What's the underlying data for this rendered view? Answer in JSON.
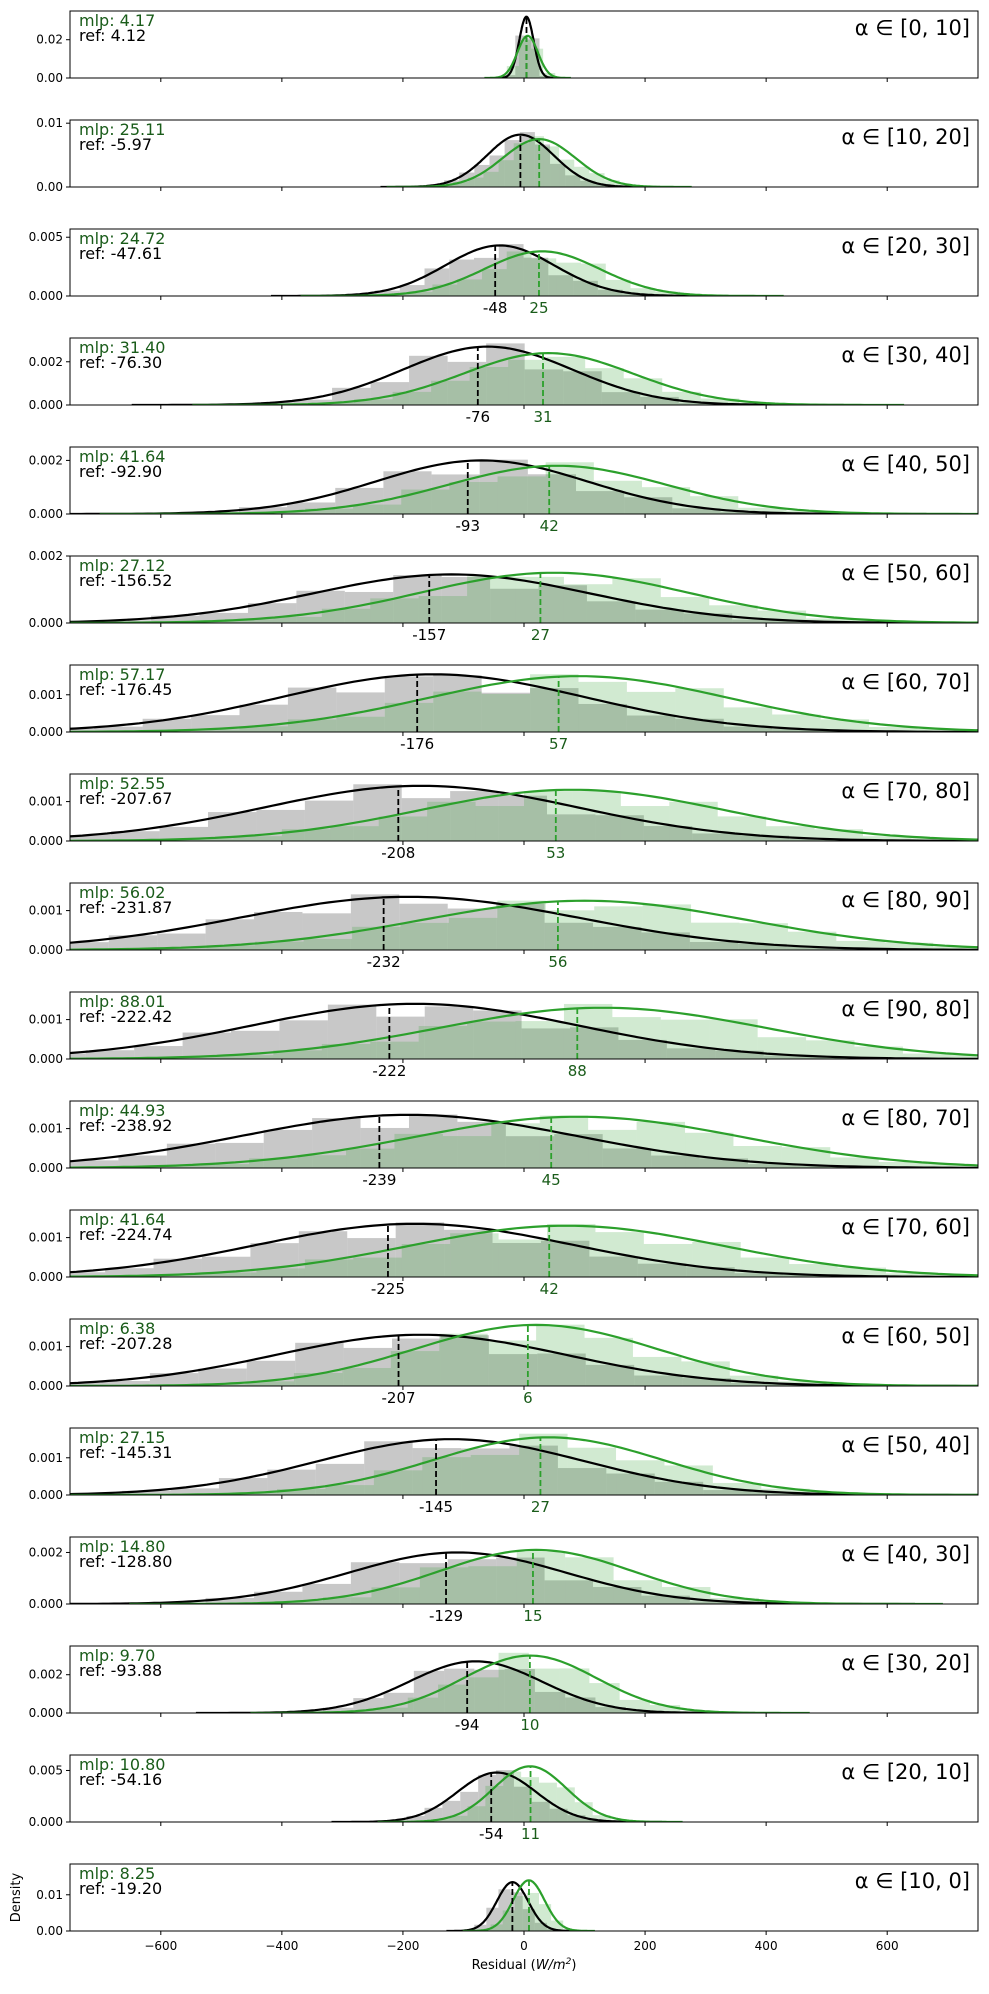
{
  "chart_data": {
    "type": "area",
    "xlabel": "Residual ($W/m^2$)",
    "ylabel": "Density",
    "xlim": [
      -750,
      750
    ],
    "xticks": [
      -600,
      -400,
      -200,
      0,
      200,
      400,
      600
    ],
    "grid": false,
    "series_colors": {
      "mlp": "#2ca02c",
      "ref": "#000000",
      "mlp_label": "#1a5c1a"
    },
    "panels": [
      {
        "label": "α ∈ [0, 10]",
        "mlp_text": "mlp: 4.17",
        "ref_text": "ref: 4.12",
        "mlp_mean": 4.17,
        "ref_mean": 4.12,
        "ymax": 0.035,
        "yticks": [
          0.0,
          0.02
        ],
        "ytick_labels": [
          "0.00",
          "0.02"
        ],
        "show_means": false,
        "ref_kde": {
          "mu": 4,
          "sigma": 12,
          "peak": 0.032
        },
        "mlp_kde": {
          "mu": 6,
          "sigma": 17,
          "peak": 0.022
        }
      },
      {
        "label": "α ∈ [10, 20]",
        "mlp_text": "mlp: 25.11",
        "ref_text": "ref: -5.97",
        "mlp_mean": 25.11,
        "ref_mean": -5.97,
        "ymax": 0.0105,
        "yticks": [
          0.0,
          0.01
        ],
        "ytick_labels": [
          "0.00",
          "0.01"
        ],
        "show_means": false,
        "ref_kde": {
          "mu": -6,
          "sigma": 55,
          "peak": 0.0082
        },
        "mlp_kde": {
          "mu": 25,
          "sigma": 60,
          "peak": 0.0075
        }
      },
      {
        "label": "α ∈ [20, 30]",
        "mlp_text": "mlp: 24.72",
        "ref_text": "ref: -47.61",
        "mlp_mean": 24.72,
        "ref_mean": -47.61,
        "ymax": 0.0057,
        "yticks": [
          0.0,
          0.005
        ],
        "ytick_labels": [
          "0.000",
          "0.005"
        ],
        "show_means": true,
        "ref_mean_label": "-48",
        "mlp_mean_label": "25",
        "ref_kde": {
          "mu": -40,
          "sigma": 90,
          "peak": 0.0043
        },
        "mlp_kde": {
          "mu": 30,
          "sigma": 95,
          "peak": 0.0038
        }
      },
      {
        "label": "α ∈ [30, 40]",
        "mlp_text": "mlp: 31.40",
        "ref_text": "ref: -76.30",
        "mlp_mean": 31.4,
        "ref_mean": -76.3,
        "ymax": 0.0031,
        "yticks": [
          0.0,
          0.002
        ],
        "ytick_labels": [
          "0.000",
          "0.002"
        ],
        "show_means": true,
        "ref_mean_label": "-76",
        "mlp_mean_label": "31",
        "ref_kde": {
          "mu": -60,
          "sigma": 140,
          "peak": 0.0027
        },
        "mlp_kde": {
          "mu": 40,
          "sigma": 140,
          "peak": 0.0024
        }
      },
      {
        "label": "α ∈ [40, 50]",
        "mlp_text": "mlp: 41.64",
        "ref_text": "ref: -92.90",
        "mlp_mean": 41.64,
        "ref_mean": -92.9,
        "ymax": 0.0025,
        "yticks": [
          0.0,
          0.002
        ],
        "ytick_labels": [
          "0.000",
          "0.002"
        ],
        "show_means": true,
        "ref_mean_label": "-93",
        "mlp_mean_label": "42",
        "ref_kde": {
          "mu": -70,
          "sigma": 175,
          "peak": 0.002
        },
        "mlp_kde": {
          "mu": 55,
          "sigma": 180,
          "peak": 0.0018
        }
      },
      {
        "label": "α ∈ [50, 60]",
        "mlp_text": "mlp: 27.12",
        "ref_text": "ref: -156.52",
        "mlp_mean": 27.12,
        "ref_mean": -156.52,
        "ymax": 0.002,
        "yticks": [
          0.0,
          0.002
        ],
        "ytick_labels": [
          "0.000",
          "0.002"
        ],
        "show_means": true,
        "ref_mean_label": "-157",
        "mlp_mean_label": "27",
        "ref_kde": {
          "mu": -120,
          "sigma": 230,
          "peak": 0.00145
        },
        "mlp_kde": {
          "mu": 50,
          "sigma": 220,
          "peak": 0.0015
        }
      },
      {
        "label": "α ∈ [60, 70]",
        "mlp_text": "mlp: 57.17",
        "ref_text": "ref: -176.45",
        "mlp_mean": 57.17,
        "ref_mean": -176.45,
        "ymax": 0.0018,
        "yticks": [
          0.0,
          0.001
        ],
        "ytick_labels": [
          "0.000",
          "0.001"
        ],
        "show_means": true,
        "ref_mean_label": "-176",
        "mlp_mean_label": "57",
        "ref_kde": {
          "mu": -150,
          "sigma": 250,
          "peak": 0.00155
        },
        "mlp_kde": {
          "mu": 90,
          "sigma": 250,
          "peak": 0.0015
        }
      },
      {
        "label": "α ∈ [70, 80]",
        "mlp_text": "mlp: 52.55",
        "ref_text": "ref: -207.67",
        "mlp_mean": 52.55,
        "ref_mean": -207.67,
        "ymax": 0.0017,
        "yticks": [
          0.0,
          0.001
        ],
        "ytick_labels": [
          "0.000",
          "0.001"
        ],
        "show_means": true,
        "ref_mean_label": "-208",
        "mlp_mean_label": "53",
        "ref_kde": {
          "mu": -170,
          "sigma": 260,
          "peak": 0.0014
        },
        "mlp_kde": {
          "mu": 80,
          "sigma": 250,
          "peak": 0.0013
        }
      },
      {
        "label": "α ∈ [80, 90]",
        "mlp_text": "mlp: 56.02",
        "ref_text": "ref: -231.87",
        "mlp_mean": 56.02,
        "ref_mean": -231.87,
        "ymax": 0.0017,
        "yticks": [
          0.0,
          0.001
        ],
        "ytick_labels": [
          "0.000",
          "0.001"
        ],
        "show_means": true,
        "ref_mean_label": "-232",
        "mlp_mean_label": "56",
        "ref_kde": {
          "mu": -190,
          "sigma": 280,
          "peak": 0.00135
        },
        "mlp_kde": {
          "mu": 100,
          "sigma": 270,
          "peak": 0.00125
        }
      },
      {
        "label": "α ∈ [90, 80]",
        "mlp_text": "mlp: 88.01",
        "ref_text": "ref: -222.42",
        "mlp_mean": 88.01,
        "ref_mean": -222.42,
        "ymax": 0.0017,
        "yticks": [
          0.0,
          0.001
        ],
        "ytick_labels": [
          "0.000",
          "0.001"
        ],
        "show_means": true,
        "ref_mean_label": "-222",
        "mlp_mean_label": "88",
        "ref_kde": {
          "mu": -180,
          "sigma": 270,
          "peak": 0.0014
        },
        "mlp_kde": {
          "mu": 130,
          "sigma": 270,
          "peak": 0.0013
        }
      },
      {
        "label": "α ∈ [80, 70]",
        "mlp_text": "mlp: 44.93",
        "ref_text": "ref: -238.92",
        "mlp_mean": 44.93,
        "ref_mean": -238.92,
        "ymax": 0.0017,
        "yticks": [
          0.0,
          0.001
        ],
        "ytick_labels": [
          "0.000",
          "0.001"
        ],
        "show_means": true,
        "ref_mean_label": "-239",
        "mlp_mean_label": "45",
        "ref_kde": {
          "mu": -190,
          "sigma": 275,
          "peak": 0.00135
        },
        "mlp_kde": {
          "mu": 90,
          "sigma": 270,
          "peak": 0.0013
        }
      },
      {
        "label": "α ∈ [70, 60]",
        "mlp_text": "mlp: 41.64",
        "ref_text": "ref: -224.74",
        "mlp_mean": 41.64,
        "ref_mean": -224.74,
        "ymax": 0.0017,
        "yticks": [
          0.0,
          0.001
        ],
        "ytick_labels": [
          "0.000",
          "0.001"
        ],
        "show_means": true,
        "ref_mean_label": "-225",
        "mlp_mean_label": "42",
        "ref_kde": {
          "mu": -180,
          "sigma": 260,
          "peak": 0.00135
        },
        "mlp_kde": {
          "mu": 70,
          "sigma": 260,
          "peak": 0.0013
        }
      },
      {
        "label": "α ∈ [60, 50]",
        "mlp_text": "mlp: 6.38",
        "ref_text": "ref: -207.28",
        "mlp_mean": 6.38,
        "ref_mean": -207.28,
        "ymax": 0.0017,
        "yticks": [
          0.0,
          0.001
        ],
        "ytick_labels": [
          "0.000",
          "0.001"
        ],
        "show_means": true,
        "ref_mean_label": "-207",
        "mlp_mean_label": "6",
        "ref_kde": {
          "mu": -170,
          "sigma": 240,
          "peak": 0.0013
        },
        "mlp_kde": {
          "mu": 20,
          "sigma": 200,
          "peak": 0.00155
        }
      },
      {
        "label": "α ∈ [50, 40]",
        "mlp_text": "mlp: 27.15",
        "ref_text": "ref: -145.31",
        "mlp_mean": 27.15,
        "ref_mean": -145.31,
        "ymax": 0.0018,
        "yticks": [
          0.0,
          0.001
        ],
        "ytick_labels": [
          "0.000",
          "0.001"
        ],
        "show_means": true,
        "ref_mean_label": "-145",
        "mlp_mean_label": "27",
        "ref_kde": {
          "mu": -120,
          "sigma": 220,
          "peak": 0.0015
        },
        "mlp_kde": {
          "mu": 40,
          "sigma": 190,
          "peak": 0.00155
        }
      },
      {
        "label": "α ∈ [40, 30]",
        "mlp_text": "mlp: 14.80",
        "ref_text": "ref: -128.80",
        "mlp_mean": 14.8,
        "ref_mean": -128.8,
        "ymax": 0.0026,
        "yticks": [
          0.0,
          0.002
        ],
        "ytick_labels": [
          "0.000",
          "0.002"
        ],
        "show_means": true,
        "ref_mean_label": "-129",
        "mlp_mean_label": "15",
        "ref_kde": {
          "mu": -110,
          "sigma": 180,
          "peak": 0.002
        },
        "mlp_kde": {
          "mu": 20,
          "sigma": 160,
          "peak": 0.0021
        }
      },
      {
        "label": "α ∈ [30, 20]",
        "mlp_text": "mlp: 9.70",
        "ref_text": "ref: -93.88",
        "mlp_mean": 9.7,
        "ref_mean": -93.88,
        "ymax": 0.0035,
        "yticks": [
          0.0,
          0.002
        ],
        "ytick_labels": [
          "0.000",
          "0.002"
        ],
        "show_means": true,
        "ref_mean_label": "-94",
        "mlp_mean_label": "10",
        "ref_kde": {
          "mu": -80,
          "sigma": 110,
          "peak": 0.0027
        },
        "mlp_kde": {
          "mu": 10,
          "sigma": 110,
          "peak": 0.003
        }
      },
      {
        "label": "α ∈ [20, 10]",
        "mlp_text": "mlp: 10.80",
        "ref_text": "ref: -54.16",
        "mlp_mean": 10.8,
        "ref_mean": -54.16,
        "ymax": 0.0065,
        "yticks": [
          0.0,
          0.005
        ],
        "ytick_labels": [
          "0.000",
          "0.005"
        ],
        "show_means": true,
        "ref_mean_label": "-54",
        "mlp_mean_label": "11",
        "ref_kde": {
          "mu": -45,
          "sigma": 65,
          "peak": 0.0048
        },
        "mlp_kde": {
          "mu": 10,
          "sigma": 60,
          "peak": 0.0054
        }
      },
      {
        "label": "α ∈ [10, 0]",
        "mlp_text": "mlp: 8.25",
        "ref_text": "ref: -19.20",
        "mlp_mean": 8.25,
        "ref_mean": -19.2,
        "ymax": 0.0185,
        "yticks": [
          0.0,
          0.01
        ],
        "ytick_labels": [
          "0.00",
          "0.01"
        ],
        "show_means": false,
        "ref_kde": {
          "mu": -19,
          "sigma": 26,
          "peak": 0.0135
        },
        "mlp_kde": {
          "mu": 8,
          "sigma": 26,
          "peak": 0.014
        }
      }
    ]
  }
}
